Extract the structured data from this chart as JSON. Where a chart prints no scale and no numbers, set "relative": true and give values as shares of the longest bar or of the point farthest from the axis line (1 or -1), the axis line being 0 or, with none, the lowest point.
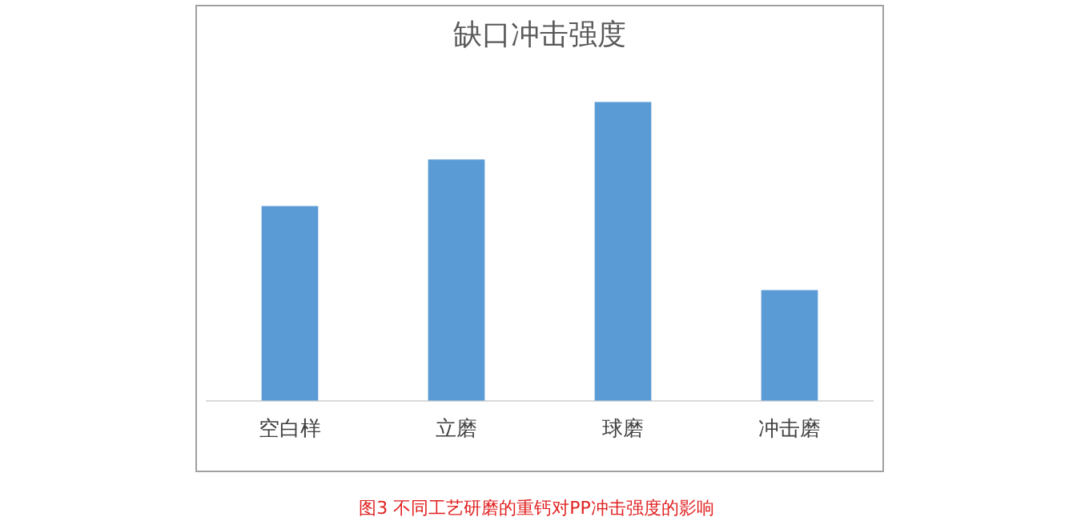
{
  "chart_data": {
    "type": "bar",
    "title": "缺口冲击强度",
    "relative": true,
    "categories": [
      "空白样",
      "立磨",
      "球磨",
      "冲击磨"
    ],
    "values": [
      0.651,
      0.807,
      1,
      0.37
    ],
    "color": "#5b9bd5",
    "grid": false,
    "legend": false,
    "annotations": [
      "图3 不同工艺研磨的重钙对PP冲击强度的影响"
    ]
  }
}
